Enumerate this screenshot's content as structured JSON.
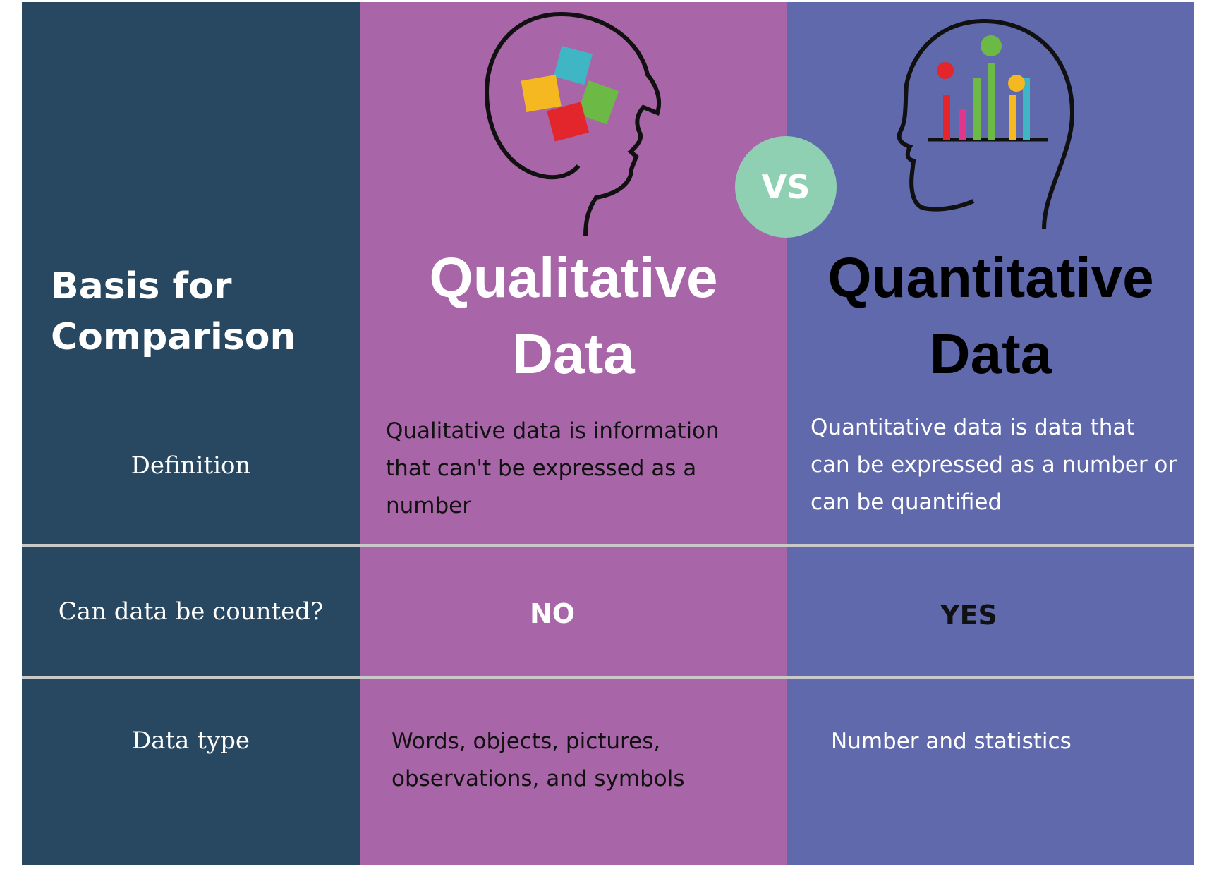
{
  "header": {
    "basis": "Basis for Comparison",
    "columns": [
      "Qualitative Data",
      "Quantitative Data"
    ],
    "vs": "VS"
  },
  "rows": [
    {
      "label": "Definition",
      "values": [
        "Qualitative data is information that can't be expressed as a number",
        "Quantitative data is data that can be expressed as a number or can be quantified"
      ]
    },
    {
      "label": "Can data be counted?",
      "values": [
        "NO",
        "YES"
      ]
    },
    {
      "label": "Data type",
      "values": [
        "Words, objects, pictures, observations, and symbols",
        "Number and statistics"
      ]
    }
  ]
}
